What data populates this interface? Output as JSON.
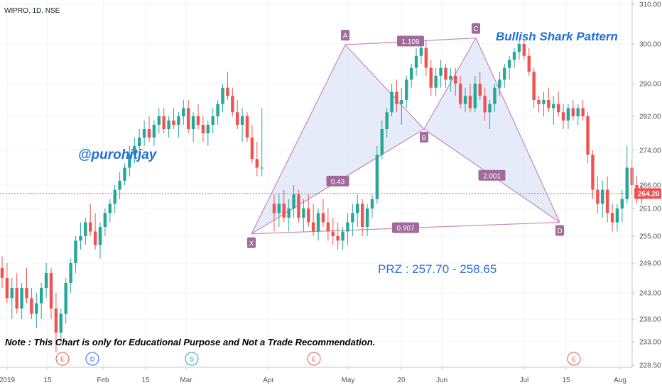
{
  "symbol_line": "WIPRO, 1D, NSE",
  "colors": {
    "up": "#26a69a",
    "down": "#ef5350",
    "pattern_line": "#c88ab8",
    "pattern_fill": "#dfe6f7",
    "label_bg": "#a06a9a",
    "text_blue": "#1e6fd9",
    "current_price": "#ef5350"
  },
  "annotations": {
    "watermark": "@purohitjay",
    "pattern_name": "Bullish Shark Pattern",
    "prz": "PRZ : 257.70 - 258.65",
    "note": "Note : This Chart is only for Educational Purpose and Not a Trade Recommendation."
  },
  "current_price": "264.20",
  "event_markers": [
    {
      "label": "E",
      "color": "#ef5350",
      "x_label": "Jan 15"
    },
    {
      "label": "D",
      "color": "#2962ff",
      "x_label": "Feb"
    },
    {
      "label": "S",
      "color": "#26a69a",
      "x_label": "Mar"
    },
    {
      "label": "E",
      "color": "#ef5350",
      "x_label": "May"
    },
    {
      "label": "E",
      "color": "#ef5350",
      "x_label": "Jul 15"
    }
  ],
  "chart_data": {
    "type": "candlestick",
    "title": "WIPRO, 1D, NSE",
    "y_ticks": [
      "310.00",
      "300.00",
      "290.00",
      "282.00",
      "274.00",
      "266.00",
      "261.00",
      "255.00",
      "249.00",
      "243.00",
      "238.00",
      "233.00",
      "228.50"
    ],
    "x_ticks": [
      "2019",
      "15",
      "Feb",
      "15",
      "Mar",
      "Apr",
      "May",
      "20",
      "Jun",
      "Jul",
      "15",
      "Aug"
    ],
    "harmonic_points": [
      {
        "label": "X",
        "price": 255.5
      },
      {
        "label": "A",
        "price": 299.8
      },
      {
        "label": "B",
        "price": 279.0
      },
      {
        "label": "C",
        "price": 301.5
      },
      {
        "label": "D",
        "price": 258.0
      }
    ],
    "ratios": [
      "0.43",
      "1.109",
      "2.001",
      "0.907"
    ],
    "current_price": 264.2,
    "candles": [
      [
        248,
        250.5,
        244,
        246
      ],
      [
        246,
        249,
        241,
        242
      ],
      [
        242,
        246,
        238,
        244
      ],
      [
        244,
        247,
        239,
        240
      ],
      [
        240,
        245,
        238,
        244
      ],
      [
        244,
        248,
        241,
        242
      ],
      [
        242,
        244,
        238,
        239
      ],
      [
        239,
        243,
        236,
        241
      ],
      [
        241,
        245,
        238,
        244
      ],
      [
        244,
        249,
        242,
        247
      ],
      [
        247,
        248,
        238,
        240
      ],
      [
        240,
        243,
        231,
        235
      ],
      [
        235,
        240,
        233,
        239
      ],
      [
        239,
        246,
        237,
        245
      ],
      [
        245,
        250,
        243,
        249
      ],
      [
        249,
        255,
        247,
        254
      ],
      [
        254,
        258,
        252,
        255
      ],
      [
        255,
        259,
        253,
        258
      ],
      [
        258,
        262,
        255,
        256
      ],
      [
        256,
        260,
        252,
        253
      ],
      [
        253,
        258,
        250,
        257
      ],
      [
        257,
        261,
        255,
        260
      ],
      [
        260,
        263,
        258,
        262
      ],
      [
        262,
        266,
        260,
        265
      ],
      [
        265,
        269,
        263,
        267
      ],
      [
        267,
        271,
        266,
        270
      ],
      [
        270,
        275,
        268,
        273
      ],
      [
        273,
        277,
        271,
        275
      ],
      [
        275,
        279,
        273,
        277
      ],
      [
        277,
        281,
        275,
        279
      ],
      [
        279,
        282,
        276,
        277
      ],
      [
        277,
        281,
        275,
        280
      ],
      [
        280,
        284,
        278,
        282
      ],
      [
        282,
        284,
        278,
        279
      ],
      [
        279,
        282,
        277,
        281
      ],
      [
        281,
        284,
        279,
        280
      ],
      [
        280,
        283,
        277,
        282
      ],
      [
        282,
        286,
        280,
        284
      ],
      [
        284,
        286,
        278,
        279
      ],
      [
        279,
        283,
        276,
        282
      ],
      [
        282,
        285,
        279,
        280
      ],
      [
        280,
        282,
        276,
        278
      ],
      [
        278,
        281,
        275,
        280
      ],
      [
        280,
        284,
        278,
        282
      ],
      [
        282,
        286,
        280,
        285
      ],
      [
        285,
        290,
        283,
        289
      ],
      [
        289,
        293,
        286,
        287
      ],
      [
        287,
        289,
        282,
        283
      ],
      [
        283,
        286,
        279,
        280
      ],
      [
        280,
        284,
        276,
        282
      ],
      [
        282,
        283,
        276,
        277
      ],
      [
        277,
        280,
        271,
        272
      ],
      [
        272,
        276,
        268,
        270
      ],
      [
        270,
        284,
        268,
        270
      ],
      [
        262,
        264,
        256,
        260
      ],
      [
        260,
        264,
        257,
        262
      ],
      [
        262,
        265,
        258,
        259
      ],
      [
        259,
        263,
        256,
        261
      ],
      [
        261,
        266,
        259,
        264
      ],
      [
        264,
        265,
        258,
        259
      ],
      [
        259,
        263,
        256,
        261
      ],
      [
        261,
        264,
        257,
        258
      ],
      [
        258,
        262,
        255,
        256
      ],
      [
        256,
        261,
        254,
        260
      ],
      [
        260,
        263,
        257,
        258
      ],
      [
        258,
        261,
        254,
        256
      ],
      [
        256,
        259,
        253,
        255
      ],
      [
        255,
        258,
        252,
        254
      ],
      [
        254,
        257,
        252,
        256
      ],
      [
        256,
        260,
        253,
        258
      ],
      [
        258,
        262,
        255,
        260
      ],
      [
        260,
        264,
        257,
        262
      ],
      [
        262,
        263,
        255,
        257
      ],
      [
        257,
        262,
        255,
        261
      ],
      [
        261,
        264,
        259,
        263
      ],
      [
        263,
        275,
        262,
        273
      ],
      [
        273,
        281,
        272,
        279
      ],
      [
        279,
        284,
        277,
        283
      ],
      [
        283,
        290,
        282,
        288
      ],
      [
        288,
        291,
        283,
        285
      ],
      [
        285,
        289,
        280,
        286
      ],
      [
        286,
        292,
        284,
        291
      ],
      [
        291,
        295,
        289,
        294
      ],
      [
        294,
        299,
        292,
        297
      ],
      [
        297,
        300,
        295,
        299
      ],
      [
        299,
        301,
        292,
        294
      ],
      [
        294,
        296,
        287,
        289
      ],
      [
        289,
        294,
        287,
        292
      ],
      [
        292,
        296,
        289,
        294
      ],
      [
        294,
        295,
        289,
        291
      ],
      [
        291,
        294,
        288,
        292
      ],
      [
        292,
        294,
        287,
        290
      ],
      [
        290,
        292,
        284,
        285
      ],
      [
        285,
        289,
        283,
        287
      ],
      [
        287,
        290,
        283,
        284
      ],
      [
        284,
        292,
        283,
        290
      ],
      [
        290,
        293,
        286,
        287
      ],
      [
        287,
        289,
        281,
        283
      ],
      [
        283,
        286,
        279,
        285
      ],
      [
        285,
        290,
        283,
        289
      ],
      [
        289,
        293,
        287,
        291
      ],
      [
        291,
        295,
        289,
        294
      ],
      [
        294,
        297,
        291,
        296
      ],
      [
        296,
        299,
        294,
        298
      ],
      [
        298,
        301,
        296,
        300
      ],
      [
        300,
        301,
        296,
        297
      ],
      [
        297,
        299,
        292,
        293
      ],
      [
        293,
        294,
        284,
        286
      ],
      [
        286,
        287,
        283,
        285
      ],
      [
        285,
        288,
        282,
        286
      ],
      [
        286,
        289,
        283,
        284
      ],
      [
        284,
        287,
        280,
        285
      ],
      [
        285,
        288,
        282,
        283
      ],
      [
        283,
        285,
        279,
        281
      ],
      [
        281,
        285,
        279,
        284
      ],
      [
        284,
        286,
        281,
        282
      ],
      [
        282,
        285,
        280,
        284
      ],
      [
        284,
        286,
        281,
        282
      ],
      [
        282,
        283,
        271,
        273
      ],
      [
        273,
        274,
        263,
        265
      ],
      [
        265,
        268,
        260,
        262
      ],
      [
        262,
        267,
        259,
        265
      ],
      [
        265,
        268,
        258,
        260
      ],
      [
        260,
        262,
        256,
        258
      ],
      [
        258,
        262,
        256,
        261
      ],
      [
        261,
        265,
        258,
        263
      ],
      [
        263,
        275,
        262,
        270
      ],
      [
        270,
        272,
        264,
        266
      ],
      [
        266,
        268,
        262,
        263
      ],
      [
        263,
        266,
        262,
        264
      ]
    ]
  }
}
